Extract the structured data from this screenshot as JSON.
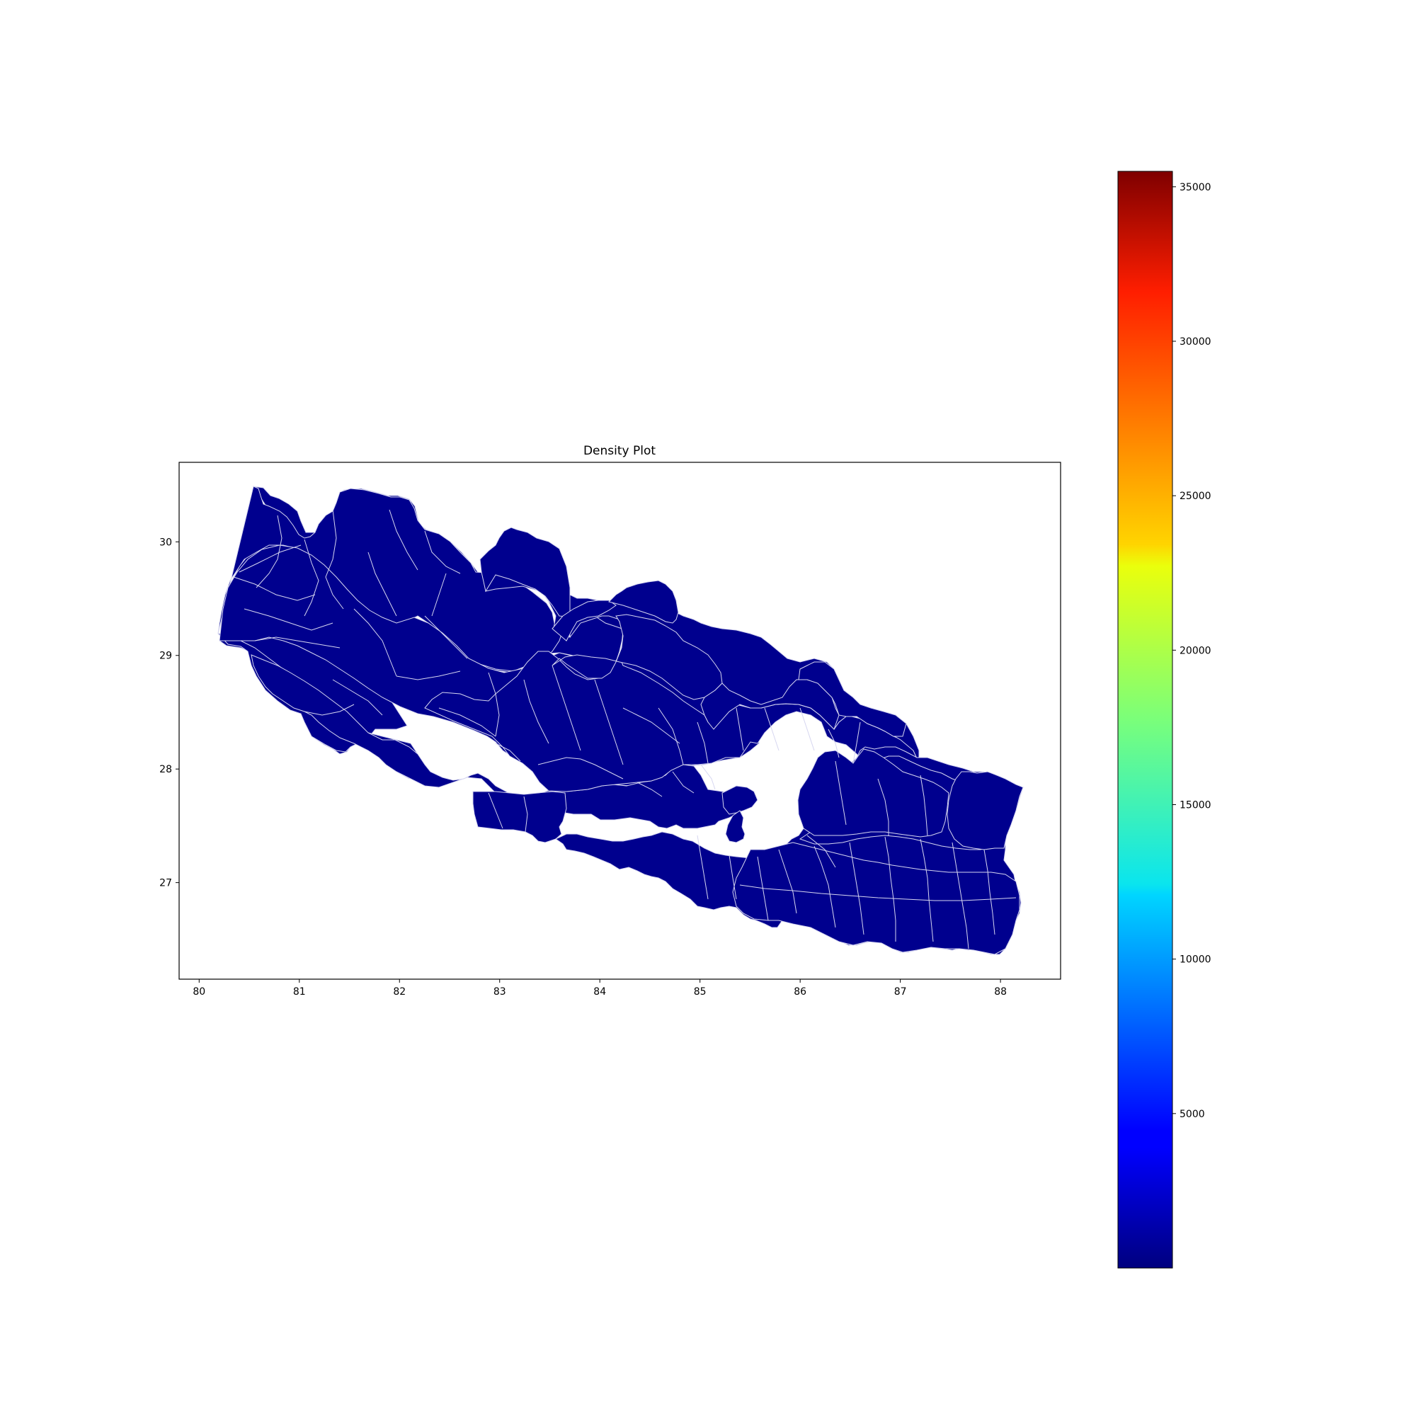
{
  "chart_data": {
    "type": "choropleth",
    "title": "Density Plot",
    "xlabel": "",
    "ylabel": "",
    "xlim": [
      79.8,
      88.6
    ],
    "ylim": [
      26.15,
      30.7
    ],
    "x_ticks": [
      "80",
      "81",
      "82",
      "83",
      "84",
      "85",
      "86",
      "87",
      "88"
    ],
    "y_ticks": [
      "27",
      "28",
      "29",
      "30"
    ],
    "colorbar": {
      "colormap": "jet",
      "range": [
        0,
        35500
      ],
      "ticks": [
        "5000",
        "10000",
        "15000",
        "20000",
        "25000",
        "30000",
        "35000"
      ]
    },
    "region_fill_color": "#00008e",
    "region_edge_color": "#d6d6f0"
  }
}
